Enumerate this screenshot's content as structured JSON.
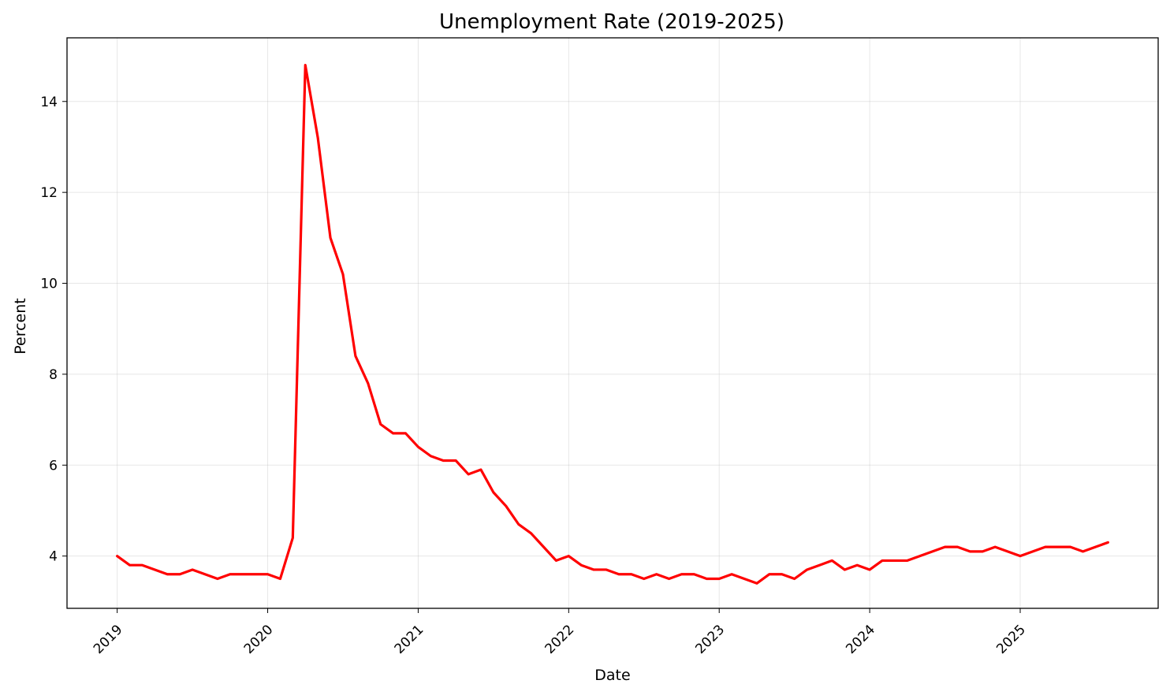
{
  "chart_data": {
    "type": "line",
    "title": "Unemployment Rate (2019-2025)",
    "xlabel": "Date",
    "ylabel": "Percent",
    "x_tick_labels": [
      "2019",
      "2020",
      "2021",
      "2022",
      "2023",
      "2024",
      "2025"
    ],
    "y_tick_labels": [
      "4",
      "6",
      "8",
      "10",
      "12",
      "14"
    ],
    "ylim": [
      2.85,
      15.4
    ],
    "xlim": [
      "2018-09",
      "2025-12"
    ],
    "grid": true,
    "line_color": "#ff0000",
    "x": [
      "2019-01",
      "2019-02",
      "2019-03",
      "2019-04",
      "2019-05",
      "2019-06",
      "2019-07",
      "2019-08",
      "2019-09",
      "2019-10",
      "2019-11",
      "2019-12",
      "2020-01",
      "2020-02",
      "2020-03",
      "2020-04",
      "2020-05",
      "2020-06",
      "2020-07",
      "2020-08",
      "2020-09",
      "2020-10",
      "2020-11",
      "2020-12",
      "2021-01",
      "2021-02",
      "2021-03",
      "2021-04",
      "2021-05",
      "2021-06",
      "2021-07",
      "2021-08",
      "2021-09",
      "2021-10",
      "2021-11",
      "2021-12",
      "2022-01",
      "2022-02",
      "2022-03",
      "2022-04",
      "2022-05",
      "2022-06",
      "2022-07",
      "2022-08",
      "2022-09",
      "2022-10",
      "2022-11",
      "2022-12",
      "2023-01",
      "2023-02",
      "2023-03",
      "2023-04",
      "2023-05",
      "2023-06",
      "2023-07",
      "2023-08",
      "2023-09",
      "2023-10",
      "2023-11",
      "2023-12",
      "2024-01",
      "2024-02",
      "2024-03",
      "2024-04",
      "2024-05",
      "2024-06",
      "2024-07",
      "2024-08",
      "2024-09",
      "2024-10",
      "2024-11",
      "2024-12",
      "2025-01",
      "2025-02",
      "2025-03",
      "2025-04",
      "2025-05",
      "2025-06",
      "2025-07",
      "2025-08"
    ],
    "y": [
      4.0,
      3.8,
      3.8,
      3.7,
      3.6,
      3.6,
      3.7,
      3.6,
      3.5,
      3.6,
      3.6,
      3.6,
      3.6,
      3.5,
      4.4,
      14.8,
      13.2,
      11.0,
      10.2,
      8.4,
      7.8,
      6.9,
      6.7,
      6.7,
      6.4,
      6.2,
      6.1,
      6.1,
      5.8,
      5.9,
      5.4,
      5.1,
      4.7,
      4.5,
      4.2,
      3.9,
      4.0,
      3.8,
      3.7,
      3.7,
      3.6,
      3.6,
      3.5,
      3.6,
      3.5,
      3.6,
      3.6,
      3.5,
      3.5,
      3.6,
      3.5,
      3.4,
      3.6,
      3.6,
      3.5,
      3.7,
      3.8,
      3.9,
      3.7,
      3.8,
      3.7,
      3.9,
      3.9,
      3.9,
      4.0,
      4.1,
      4.2,
      4.2,
      4.1,
      4.1,
      4.2,
      4.1,
      4.0,
      4.1,
      4.2,
      4.2,
      4.2,
      4.1,
      4.2,
      4.3
    ]
  }
}
